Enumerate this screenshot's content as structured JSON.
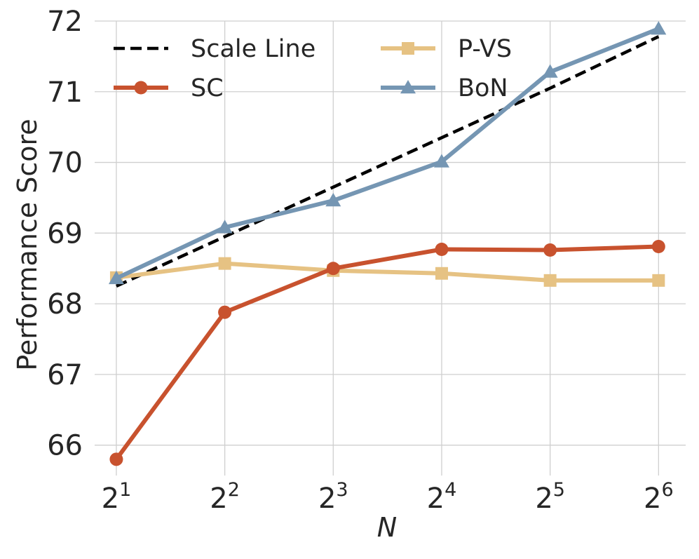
{
  "chart_data": {
    "type": "line",
    "title": "",
    "xlabel": "N",
    "ylabel": "Performance Score",
    "x_tick_base": "2",
    "x_tick_exponents": [
      "1",
      "2",
      "3",
      "4",
      "5",
      "6"
    ],
    "x": [
      1,
      2,
      3,
      4,
      5,
      6
    ],
    "y_ticks": [
      "66",
      "67",
      "68",
      "69",
      "70",
      "71",
      "72"
    ],
    "y_tick_values": [
      66,
      67,
      68,
      69,
      70,
      71,
      72
    ],
    "ylim": [
      65.57,
      72.0
    ],
    "xlim": [
      0.8,
      6.25
    ],
    "grid": true,
    "legend_position": "top, two columns",
    "series": [
      {
        "name": "Scale Line",
        "color": "#000000",
        "style": "dashed",
        "marker": "none",
        "values": [
          68.25,
          68.95,
          69.65,
          70.35,
          71.05,
          71.78
        ]
      },
      {
        "name": "SC",
        "color": "#c8522e",
        "style": "solid",
        "marker": "circle",
        "values": [
          65.8,
          67.88,
          68.5,
          68.77,
          68.76,
          68.81
        ]
      },
      {
        "name": "P-VS",
        "color": "#e6c283",
        "style": "solid",
        "marker": "square",
        "values": [
          68.37,
          68.57,
          68.47,
          68.43,
          68.33,
          68.33
        ]
      },
      {
        "name": "BoN",
        "color": "#7596b3",
        "style": "solid",
        "marker": "triangle",
        "values": [
          68.36,
          69.08,
          69.46,
          70.01,
          71.28,
          71.89
        ]
      }
    ]
  }
}
